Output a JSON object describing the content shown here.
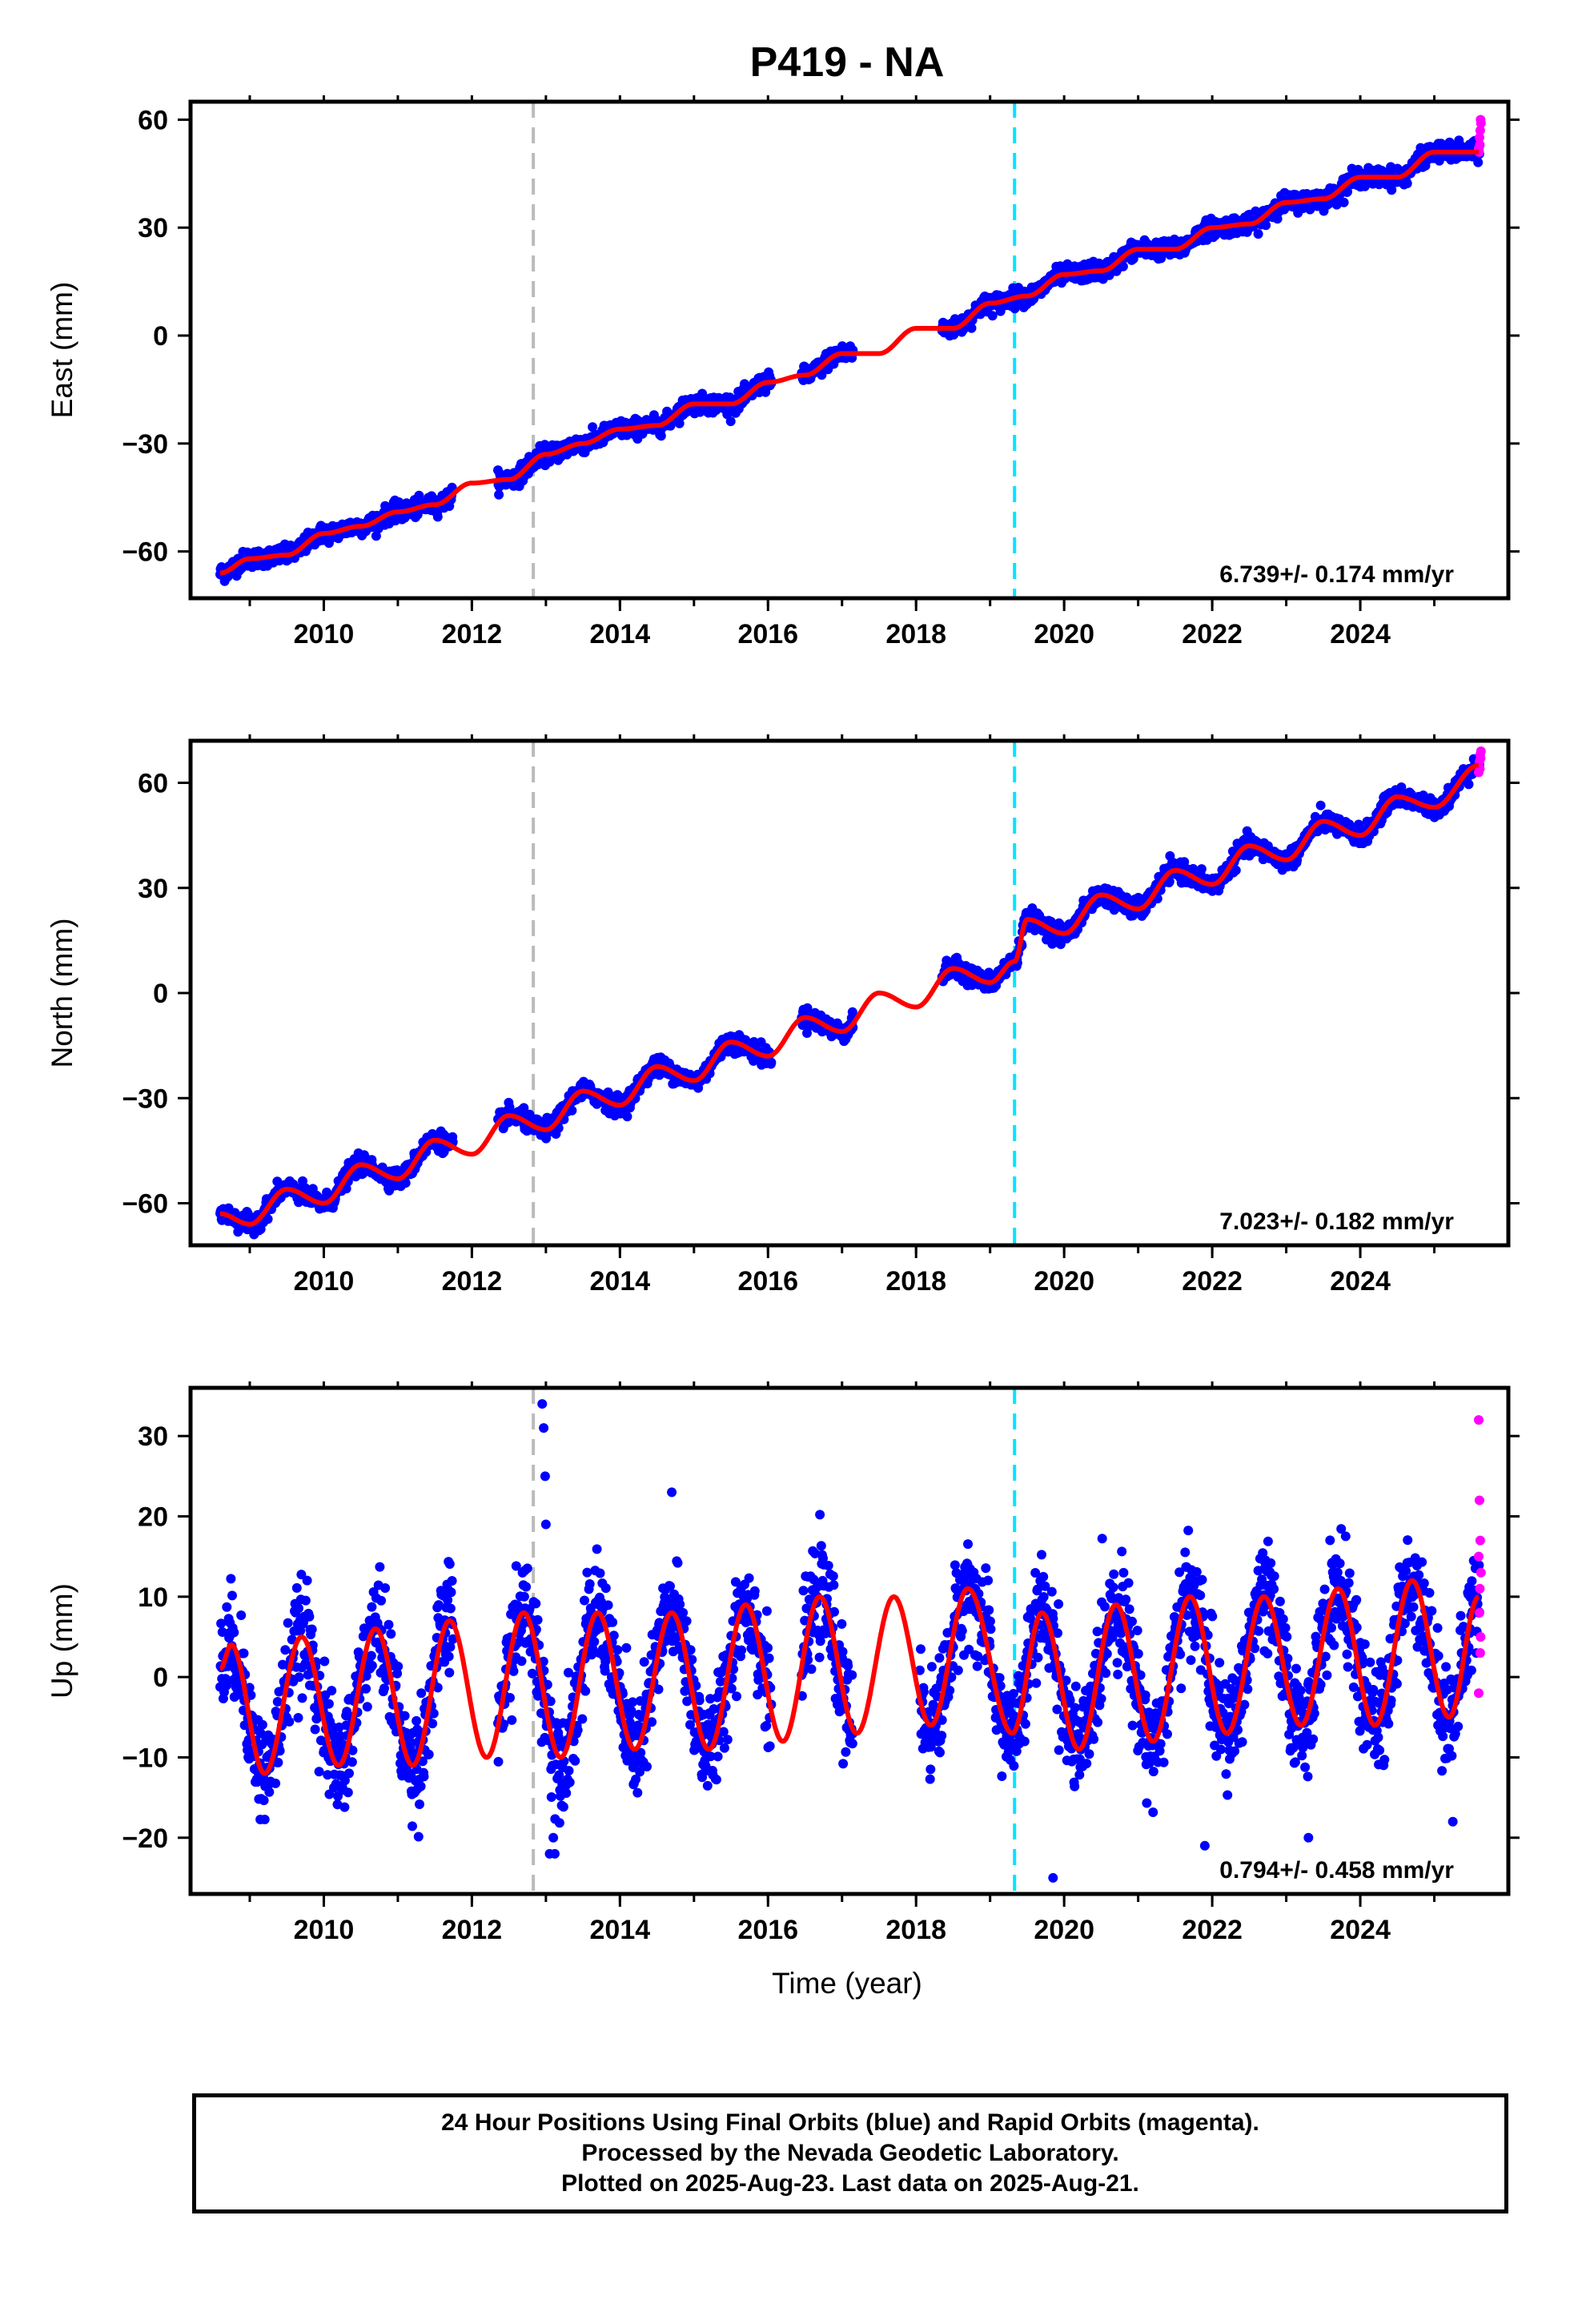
{
  "title": "P419 - NA",
  "xlabel": "Time (year)",
  "colors": {
    "final": "#0000ff",
    "rapid": "#ff00ff",
    "model": "#ff0000",
    "gray_line": "#bbbbbb",
    "cyan_line": "#00e5ff"
  },
  "footer": {
    "line1": "24 Hour Positions Using Final Orbits (blue) and Rapid Orbits (magenta).",
    "line2": "Processed by the Nevada Geodetic Laboratory.",
    "line3": "Plotted on 2025-Aug-23. Last data on 2025-Aug-21."
  },
  "chart_data": [
    {
      "type": "scatter",
      "ylabel": "East (mm)",
      "rate": "6.739+/- 0.174 mm/yr",
      "xlim": [
        2008.2,
        2026.0
      ],
      "ylim": [
        -73,
        65
      ],
      "xticks": [
        2010,
        2012,
        2014,
        2016,
        2018,
        2020,
        2022,
        2024
      ],
      "yticks": [
        -60,
        -30,
        0,
        30,
        60
      ],
      "data_start": 2008.6,
      "data_end": 2025.63,
      "gaps": [
        [
          2011.75,
          2012.35
        ],
        [
          2016.05,
          2016.45
        ],
        [
          2017.15,
          2018.35
        ]
      ],
      "intercept_2008_6": -66,
      "trend": 6.739,
      "seasonal_amp": 1.5,
      "noise": 1.2,
      "vertical_lines": [
        2012.83,
        2019.33
      ],
      "model": [
        [
          2008.6,
          -66
        ],
        [
          2009.0,
          -62
        ],
        [
          2009.5,
          -61
        ],
        [
          2010.0,
          -55
        ],
        [
          2010.5,
          -53
        ],
        [
          2011.0,
          -49
        ],
        [
          2011.5,
          -47
        ],
        [
          2012.0,
          -41
        ],
        [
          2012.5,
          -40
        ],
        [
          2013.0,
          -33
        ],
        [
          2013.5,
          -30
        ],
        [
          2014.0,
          -26
        ],
        [
          2014.5,
          -25
        ],
        [
          2015.0,
          -19
        ],
        [
          2015.5,
          -19
        ],
        [
          2016.0,
          -13
        ],
        [
          2016.5,
          -11
        ],
        [
          2017.0,
          -5
        ],
        [
          2017.5,
          -5
        ],
        [
          2018.0,
          2
        ],
        [
          2018.5,
          2
        ],
        [
          2019.0,
          9
        ],
        [
          2019.5,
          11
        ],
        [
          2020.0,
          17
        ],
        [
          2020.5,
          18
        ],
        [
          2021.0,
          24
        ],
        [
          2021.5,
          24
        ],
        [
          2022.0,
          30
        ],
        [
          2022.5,
          31
        ],
        [
          2023.0,
          37
        ],
        [
          2023.5,
          38
        ],
        [
          2024.0,
          44
        ],
        [
          2024.5,
          44
        ],
        [
          2025.0,
          51
        ],
        [
          2025.6,
          51
        ]
      ],
      "rapid_points": [
        [
          2025.6,
          52
        ],
        [
          2025.61,
          55
        ],
        [
          2025.62,
          57
        ],
        [
          2025.63,
          59
        ],
        [
          2025.615,
          53
        ],
        [
          2025.625,
          60
        ],
        [
          2025.605,
          51
        ]
      ]
    },
    {
      "type": "scatter",
      "ylabel": "North (mm)",
      "rate": "7.023+/- 0.182 mm/yr",
      "xlim": [
        2008.2,
        2026.0
      ],
      "ylim": [
        -72,
        72
      ],
      "xticks": [
        2010,
        2012,
        2014,
        2016,
        2018,
        2020,
        2022,
        2024
      ],
      "yticks": [
        -60,
        -30,
        0,
        30,
        60
      ],
      "data_start": 2008.6,
      "data_end": 2025.63,
      "gaps": [
        [
          2011.75,
          2012.35
        ],
        [
          2016.05,
          2016.45
        ],
        [
          2017.15,
          2018.35
        ]
      ],
      "intercept_2008_6": -64,
      "trend": 7.023,
      "seasonal_amp": 3.5,
      "noise": 1.3,
      "vertical_lines": [
        2012.83,
        2019.33
      ],
      "model": [
        [
          2008.6,
          -63
        ],
        [
          2009.0,
          -66
        ],
        [
          2009.5,
          -56
        ],
        [
          2010.0,
          -60
        ],
        [
          2010.5,
          -49
        ],
        [
          2011.0,
          -53
        ],
        [
          2011.5,
          -42
        ],
        [
          2012.0,
          -46
        ],
        [
          2012.5,
          -35
        ],
        [
          2013.0,
          -39
        ],
        [
          2013.5,
          -28
        ],
        [
          2014.0,
          -32
        ],
        [
          2014.5,
          -21
        ],
        [
          2015.0,
          -25
        ],
        [
          2015.5,
          -14
        ],
        [
          2016.0,
          -18
        ],
        [
          2016.5,
          -7
        ],
        [
          2017.0,
          -11
        ],
        [
          2017.5,
          0
        ],
        [
          2018.0,
          -4
        ],
        [
          2018.5,
          7
        ],
        [
          2019.0,
          3
        ],
        [
          2019.33,
          9
        ],
        [
          2019.5,
          21
        ],
        [
          2020.0,
          17
        ],
        [
          2020.5,
          28
        ],
        [
          2021.0,
          24
        ],
        [
          2021.5,
          35
        ],
        [
          2022.0,
          31
        ],
        [
          2022.5,
          42
        ],
        [
          2023.0,
          38
        ],
        [
          2023.5,
          49
        ],
        [
          2024.0,
          45
        ],
        [
          2024.5,
          56
        ],
        [
          2025.0,
          53
        ],
        [
          2025.6,
          65
        ]
      ],
      "rapid_points": [
        [
          2025.6,
          63
        ],
        [
          2025.61,
          66
        ],
        [
          2025.62,
          68
        ],
        [
          2025.63,
          69
        ],
        [
          2025.615,
          64
        ],
        [
          2025.625,
          67
        ]
      ]
    },
    {
      "type": "scatter",
      "ylabel": "Up (mm)",
      "rate": "0.794+/- 0.458 mm/yr",
      "xlim": [
        2008.2,
        2026.0
      ],
      "ylim": [
        -27,
        36
      ],
      "xticks": [
        2010,
        2012,
        2014,
        2016,
        2018,
        2020,
        2022,
        2024
      ],
      "yticks": [
        -20,
        -10,
        0,
        10,
        20,
        30
      ],
      "data_start": 2008.6,
      "data_end": 2025.63,
      "gaps": [
        [
          2011.75,
          2012.35
        ],
        [
          2016.05,
          2016.45
        ],
        [
          2017.15,
          2018.05
        ]
      ],
      "intercept_2008_6": -3,
      "trend": 0.794,
      "seasonal_amp": 8.5,
      "noise": 3.2,
      "vertical_lines": [
        2012.83,
        2019.33
      ],
      "model": [
        [
          2008.6,
          1
        ],
        [
          2008.75,
          4
        ],
        [
          2009.2,
          -12
        ],
        [
          2009.7,
          5
        ],
        [
          2010.2,
          -11
        ],
        [
          2010.7,
          6
        ],
        [
          2011.2,
          -11
        ],
        [
          2011.7,
          7
        ],
        [
          2012.2,
          -10
        ],
        [
          2012.7,
          8
        ],
        [
          2013.2,
          -10
        ],
        [
          2013.7,
          8
        ],
        [
          2014.2,
          -9
        ],
        [
          2014.7,
          8
        ],
        [
          2015.2,
          -9
        ],
        [
          2015.7,
          9
        ],
        [
          2016.2,
          -8
        ],
        [
          2016.7,
          10
        ],
        [
          2017.2,
          -7
        ],
        [
          2017.7,
          10
        ],
        [
          2018.2,
          -6
        ],
        [
          2018.7,
          11
        ],
        [
          2019.3,
          -7
        ],
        [
          2019.7,
          8
        ],
        [
          2020.2,
          -9
        ],
        [
          2020.7,
          9
        ],
        [
          2021.2,
          -8
        ],
        [
          2021.7,
          10
        ],
        [
          2022.2,
          -7
        ],
        [
          2022.7,
          10
        ],
        [
          2023.2,
          -6
        ],
        [
          2023.7,
          11
        ],
        [
          2024.2,
          -6
        ],
        [
          2024.7,
          12
        ],
        [
          2025.2,
          -5
        ],
        [
          2025.6,
          10
        ]
      ],
      "outliers": [
        [
          2012.95,
          34
        ],
        [
          2012.97,
          31
        ],
        [
          2012.99,
          25
        ],
        [
          2013.0,
          19
        ],
        [
          2013.1,
          -20
        ],
        [
          2013.12,
          -22
        ],
        [
          2014.7,
          23
        ],
        [
          2019.85,
          -25
        ],
        [
          2021.9,
          -21
        ],
        [
          2023.3,
          -20
        ],
        [
          2025.25,
          -18
        ],
        [
          2013.05,
          -22
        ]
      ],
      "rapid_points": [
        [
          2025.6,
          32
        ],
        [
          2025.61,
          22
        ],
        [
          2025.62,
          17
        ],
        [
          2025.6,
          15
        ],
        [
          2025.63,
          13
        ],
        [
          2025.61,
          8
        ],
        [
          2025.62,
          3
        ],
        [
          2025.6,
          -2
        ],
        [
          2025.615,
          11
        ],
        [
          2025.625,
          5
        ]
      ]
    }
  ]
}
